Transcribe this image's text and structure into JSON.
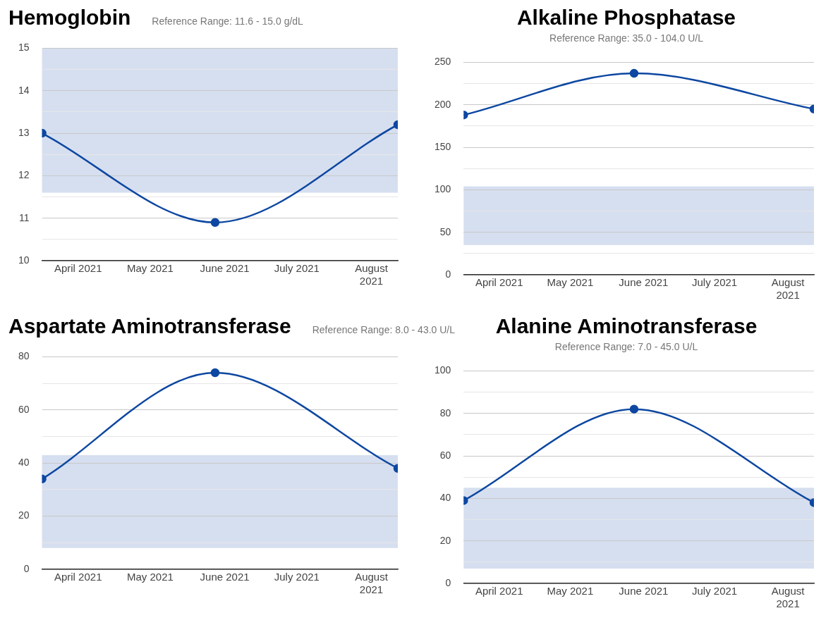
{
  "chart_data": [
    {
      "type": "line",
      "title": "Hemoglobin",
      "subtitle": "Reference Range: 11.6 - 15.0 g/dL",
      "x": [
        "2021-03-17",
        "2021-05-28",
        "2021-08-12"
      ],
      "series": [
        {
          "color": "#0d47a1",
          "values": [
            13.0,
            10.9,
            13.2
          ]
        }
      ],
      "ylim": [
        10,
        15
      ],
      "yticks": [
        10,
        {
          "value": 10.5,
          "label": null
        },
        11,
        {
          "value": 11.5,
          "label": null
        },
        12,
        {
          "value": 12.5,
          "label": null
        },
        13,
        {
          "value": 13.5,
          "label": null
        },
        14,
        {
          "value": 14.5,
          "label": null
        },
        15
      ],
      "xlim": [
        "2021-03-17",
        "2021-08-12"
      ],
      "xticks": [
        {
          "value": "2021-04-01",
          "label": "April 2021"
        },
        {
          "value": "2021-05-01",
          "label": "May 2021"
        },
        {
          "value": "2021-06-01",
          "label": "June 2021"
        },
        {
          "value": "2021-07-01",
          "label": "July 2021"
        },
        {
          "value": "2021-08-01",
          "label": "August 2021"
        }
      ],
      "bands": [
        {
          "axis": "y",
          "from": 11.6,
          "to": 15.0,
          "color": "#d6dff0"
        }
      ],
      "grid": "y",
      "marker": "circle"
    },
    {
      "type": "line",
      "title": "Alkaline Phosphatase",
      "subtitle": "Reference Range: 35.0 - 104.0 U/L",
      "x": [
        "2021-03-17",
        "2021-05-28",
        "2021-08-12"
      ],
      "series": [
        {
          "color": "#0d47a1",
          "values": [
            188,
            237,
            195
          ]
        }
      ],
      "ylim": [
        0,
        250
      ],
      "yticks": [
        0,
        {
          "value": 25,
          "label": null
        },
        50,
        {
          "value": 75,
          "label": null
        },
        100,
        {
          "value": 125,
          "label": null
        },
        150,
        {
          "value": 175,
          "label": null
        },
        200,
        {
          "value": 225,
          "label": null
        },
        250
      ],
      "xlim": [
        "2021-03-17",
        "2021-08-12"
      ],
      "xticks": [
        {
          "value": "2021-04-01",
          "label": "April 2021"
        },
        {
          "value": "2021-05-01",
          "label": "May 2021"
        },
        {
          "value": "2021-06-01",
          "label": "June 2021"
        },
        {
          "value": "2021-07-01",
          "label": "July 2021"
        },
        {
          "value": "2021-08-01",
          "label": "August 2021"
        }
      ],
      "bands": [
        {
          "axis": "y",
          "from": 35.0,
          "to": 104.0,
          "color": "#d6dff0"
        }
      ],
      "grid": "y",
      "marker": "circle"
    },
    {
      "type": "line",
      "title": "Aspartate Aminotransferase",
      "subtitle": "Reference Range: 8.0 - 43.0 U/L",
      "x": [
        "2021-03-17",
        "2021-05-28",
        "2021-08-12"
      ],
      "series": [
        {
          "color": "#0d47a1",
          "values": [
            34,
            74,
            38
          ]
        }
      ],
      "ylim": [
        0,
        80
      ],
      "yticks": [
        0,
        {
          "value": 10,
          "label": null
        },
        20,
        {
          "value": 30,
          "label": null
        },
        40,
        {
          "value": 50,
          "label": null
        },
        60,
        {
          "value": 70,
          "label": null
        },
        80
      ],
      "xlim": [
        "2021-03-17",
        "2021-08-12"
      ],
      "xticks": [
        {
          "value": "2021-04-01",
          "label": "April 2021"
        },
        {
          "value": "2021-05-01",
          "label": "May 2021"
        },
        {
          "value": "2021-06-01",
          "label": "June 2021"
        },
        {
          "value": "2021-07-01",
          "label": "July 2021"
        },
        {
          "value": "2021-08-01",
          "label": "August 2021"
        }
      ],
      "bands": [
        {
          "axis": "y",
          "from": 8.0,
          "to": 43.0,
          "color": "#d6dff0"
        }
      ],
      "grid": "y",
      "marker": "circle"
    },
    {
      "type": "line",
      "title": "Alanine Aminotransferase",
      "subtitle": "Reference Range: 7.0 - 45.0 U/L",
      "x": [
        "2021-03-17",
        "2021-05-28",
        "2021-08-12"
      ],
      "series": [
        {
          "color": "#0d47a1",
          "values": [
            39,
            82,
            38
          ]
        }
      ],
      "ylim": [
        0,
        100
      ],
      "yticks": [
        0,
        {
          "value": 10,
          "label": null
        },
        20,
        {
          "value": 30,
          "label": null
        },
        40,
        {
          "value": 50,
          "label": null
        },
        60,
        {
          "value": 70,
          "label": null
        },
        80,
        {
          "value": 90,
          "label": null
        },
        100
      ],
      "xlim": [
        "2021-03-17",
        "2021-08-12"
      ],
      "xticks": [
        {
          "value": "2021-04-01",
          "label": "April 2021"
        },
        {
          "value": "2021-05-01",
          "label": "May 2021"
        },
        {
          "value": "2021-06-01",
          "label": "June 2021"
        },
        {
          "value": "2021-07-01",
          "label": "July 2021"
        },
        {
          "value": "2021-08-01",
          "label": "August 2021"
        }
      ],
      "bands": [
        {
          "axis": "y",
          "from": 7.0,
          "to": 45.0,
          "color": "#d6dff0"
        }
      ],
      "grid": "y",
      "marker": "circle"
    }
  ]
}
